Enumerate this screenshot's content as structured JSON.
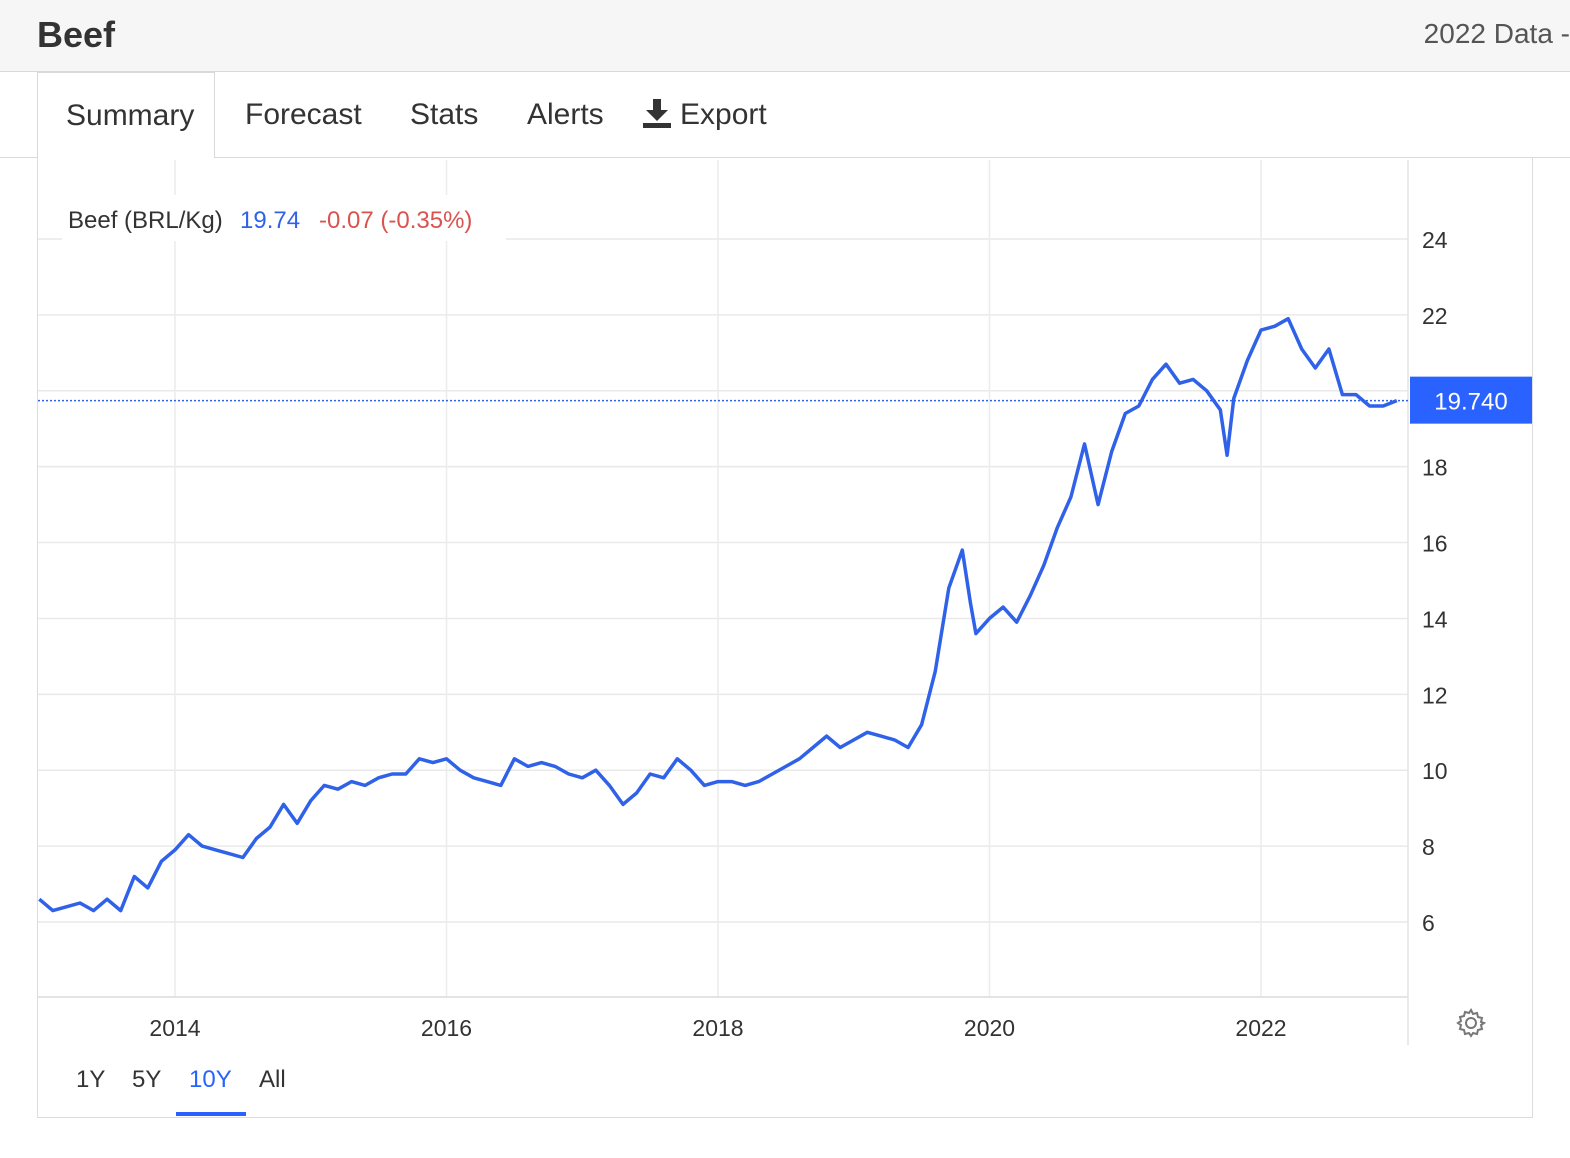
{
  "header": {
    "title": "Beef",
    "data_label": "2022 Data -"
  },
  "tabs": [
    {
      "label": "Summary",
      "active": true
    },
    {
      "label": "Forecast"
    },
    {
      "label": "Stats"
    },
    {
      "label": "Alerts"
    },
    {
      "label": "Export",
      "icon": "download-icon"
    }
  ],
  "legend": {
    "name": "Beef (BRL/Kg)",
    "last": "19.74",
    "change": "-0.07 (-0.35%)"
  },
  "price_tag": "19.740",
  "range_buttons": [
    {
      "label": "1Y"
    },
    {
      "label": "5Y"
    },
    {
      "label": "10Y",
      "active": true
    },
    {
      "label": "All"
    }
  ],
  "colors": {
    "line": "#2f62e8",
    "positive": "#2f62e8",
    "negative": "#d9534f",
    "tag": "#2962ff"
  },
  "chart_data": {
    "type": "line",
    "title": "",
    "xlabel": "",
    "ylabel": "",
    "x_ticks": [
      "2014",
      "2016",
      "2018",
      "2020",
      "2022"
    ],
    "y_ticks": [
      6,
      8,
      10,
      12,
      14,
      16,
      18,
      22,
      24
    ],
    "xlim": [
      2013.0,
      2023.1
    ],
    "ylim": [
      4,
      26
    ],
    "grid": true,
    "last_value": 19.74,
    "series": [
      {
        "name": "Beef (BRL/Kg)",
        "x": [
          2013.0,
          2013.1,
          2013.2,
          2013.3,
          2013.4,
          2013.5,
          2013.6,
          2013.7,
          2013.8,
          2013.9,
          2014.0,
          2014.1,
          2014.2,
          2014.3,
          2014.4,
          2014.5,
          2014.6,
          2014.7,
          2014.8,
          2014.9,
          2015.0,
          2015.1,
          2015.2,
          2015.3,
          2015.4,
          2015.5,
          2015.6,
          2015.7,
          2015.8,
          2015.9,
          2016.0,
          2016.1,
          2016.2,
          2016.3,
          2016.4,
          2016.5,
          2016.6,
          2016.7,
          2016.8,
          2016.9,
          2017.0,
          2017.1,
          2017.2,
          2017.3,
          2017.4,
          2017.5,
          2017.6,
          2017.7,
          2017.8,
          2017.9,
          2018.0,
          2018.1,
          2018.2,
          2018.3,
          2018.4,
          2018.5,
          2018.6,
          2018.7,
          2018.8,
          2018.9,
          2019.0,
          2019.1,
          2019.2,
          2019.3,
          2019.4,
          2019.5,
          2019.6,
          2019.7,
          2019.8,
          2019.86,
          2019.9,
          2020.0,
          2020.1,
          2020.2,
          2020.3,
          2020.4,
          2020.5,
          2020.6,
          2020.7,
          2020.8,
          2020.9,
          2021.0,
          2021.1,
          2021.2,
          2021.3,
          2021.4,
          2021.5,
          2021.6,
          2021.7,
          2021.75,
          2021.8,
          2021.9,
          2022.0,
          2022.1,
          2022.2,
          2022.3,
          2022.4,
          2022.5,
          2022.6,
          2022.7,
          2022.8,
          2022.9,
          2023.0
        ],
        "values": [
          6.6,
          6.3,
          6.4,
          6.5,
          6.3,
          6.6,
          6.3,
          7.2,
          6.9,
          7.6,
          7.9,
          8.3,
          8.0,
          7.9,
          7.8,
          7.7,
          8.2,
          8.5,
          9.1,
          8.6,
          9.2,
          9.6,
          9.5,
          9.7,
          9.6,
          9.8,
          9.9,
          9.9,
          10.3,
          10.2,
          10.3,
          10.0,
          9.8,
          9.7,
          9.6,
          10.3,
          10.1,
          10.2,
          10.1,
          9.9,
          9.8,
          10.0,
          9.6,
          9.1,
          9.4,
          9.9,
          9.8,
          10.3,
          10.0,
          9.6,
          9.7,
          9.7,
          9.6,
          9.7,
          9.9,
          10.1,
          10.3,
          10.6,
          10.9,
          10.6,
          10.8,
          11.0,
          10.9,
          10.8,
          10.6,
          11.2,
          12.6,
          14.8,
          15.8,
          14.4,
          13.6,
          14.0,
          14.3,
          13.9,
          14.6,
          15.4,
          16.4,
          17.2,
          18.6,
          17.0,
          18.4,
          19.4,
          19.6,
          20.3,
          20.7,
          20.2,
          20.3,
          20.0,
          19.5,
          18.3,
          19.8,
          20.8,
          21.6,
          21.7,
          21.9,
          21.1,
          20.6,
          21.1,
          19.9,
          19.9,
          19.6,
          19.6,
          19.74
        ]
      }
    ]
  }
}
